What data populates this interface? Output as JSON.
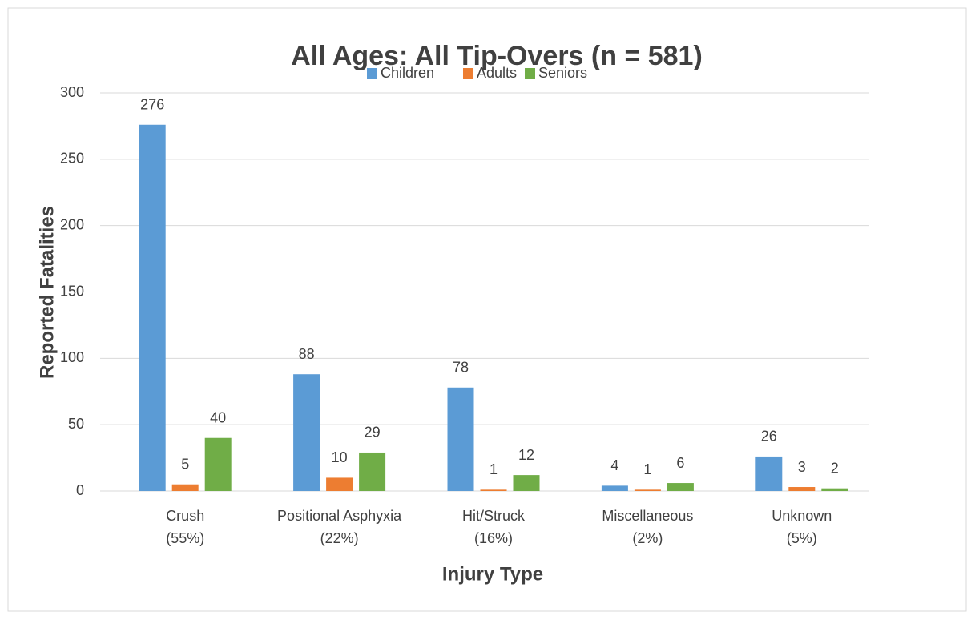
{
  "chart_data": {
    "type": "bar",
    "title": "All Ages: All Tip-Overs (n = 581)",
    "x_label": "Injury Type",
    "y_label": "Reported Fatalities",
    "categories": [
      [
        "Crush",
        "(55%)"
      ],
      [
        "Positional Asphyxia",
        "(22%)"
      ],
      [
        "Hit/Struck",
        "(16%)"
      ],
      [
        "Miscellaneous",
        "(2%)"
      ],
      [
        "Unknown",
        "(5%)"
      ]
    ],
    "series": [
      {
        "name": "Children",
        "color": "#5b9bd5",
        "values": [
          276,
          88,
          78,
          4,
          26
        ]
      },
      {
        "name": "Adults",
        "color": "#ed7d31",
        "values": [
          5,
          10,
          1,
          1,
          3
        ]
      },
      {
        "name": "Seniors",
        "color": "#70ad47",
        "values": [
          40,
          29,
          12,
          6,
          2
        ]
      }
    ],
    "ylim": [
      0,
      300
    ],
    "yticks": [
      0,
      50,
      100,
      150,
      200,
      250,
      300
    ],
    "grid": true,
    "legend": "top"
  }
}
